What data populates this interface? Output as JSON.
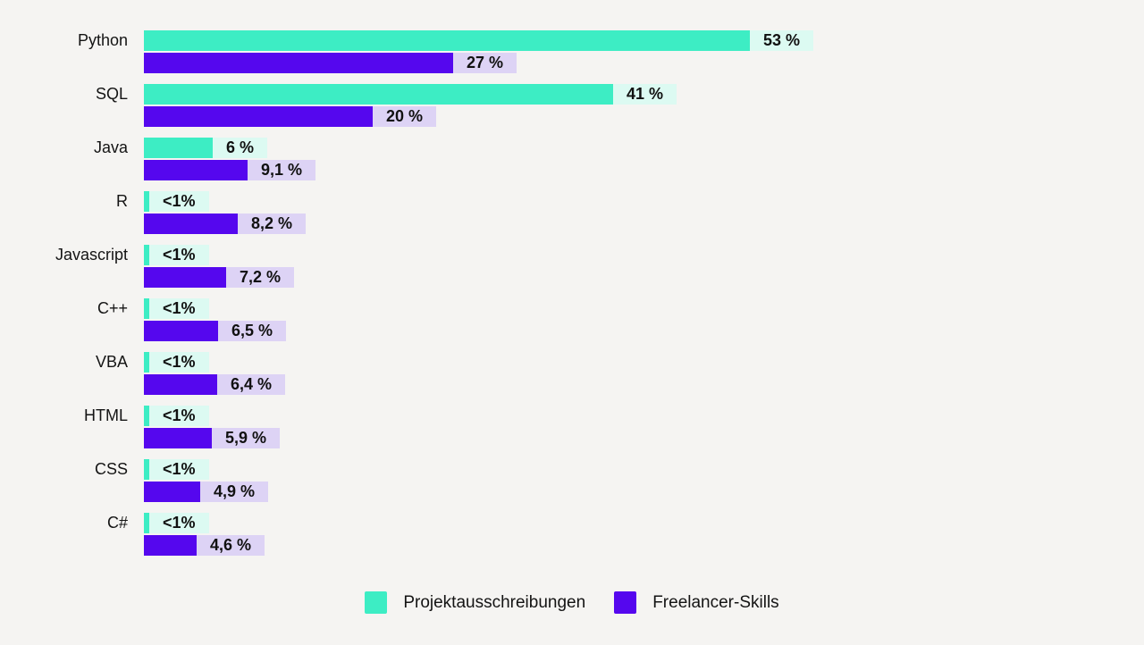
{
  "page": {
    "background_color": "#f5f4f2",
    "text_color": "#141414"
  },
  "chart_data": {
    "type": "bar",
    "orientation": "horizontal",
    "title": "",
    "xlabel": "",
    "ylabel": "",
    "unit": "%",
    "grid": false,
    "legend_position": "bottom",
    "xlim": [
      0,
      55
    ],
    "categories": [
      "Python",
      "SQL",
      "Java",
      "R",
      "Javascript",
      "C++",
      "VBA",
      "HTML",
      "CSS",
      "C#"
    ],
    "series": [
      {
        "name": "Projektausschreibungen",
        "color": "#3dedc4",
        "label_background": "#dcfaf2",
        "values": [
          53,
          41,
          6,
          0.5,
          0.5,
          0.5,
          0.5,
          0.5,
          0.5,
          0.5
        ],
        "value_labels": [
          "53 %",
          "41 %",
          "6 %",
          "<1%",
          "<1%",
          "<1%",
          "<1%",
          "<1%",
          "<1%",
          "<1%"
        ]
      },
      {
        "name": "Freelancer-Skills",
        "color": "#5507ee",
        "label_background": "#ddd3f5",
        "values": [
          27,
          20,
          9.1,
          8.2,
          7.2,
          6.5,
          6.4,
          5.9,
          4.9,
          4.6
        ],
        "value_labels": [
          "27 %",
          "20 %",
          "9,1 %",
          "8,2 %",
          "7,2 %",
          "6,5 %",
          "6,4 %",
          "5,9 %",
          "4,9 %",
          "4,6 %"
        ]
      }
    ]
  },
  "legend": {
    "items": [
      {
        "label": "Projektausschreibungen",
        "color": "#3dedc4"
      },
      {
        "label": "Freelancer-Skills",
        "color": "#5507ee"
      }
    ]
  }
}
